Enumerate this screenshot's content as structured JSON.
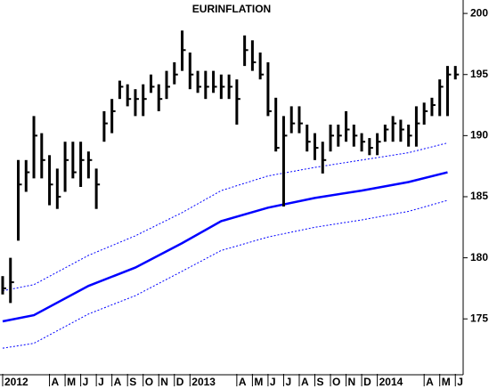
{
  "chart_data": {
    "type": "ohlc",
    "title": "EURINFLATION",
    "xlim": [
      -0.17,
      29.5
    ],
    "ylim": [
      170.5,
      201.1
    ],
    "xticks": [
      {
        "value": 0,
        "label": "2012"
      },
      {
        "value": 3,
        "label": "A"
      },
      {
        "value": 4,
        "label": "M"
      },
      {
        "value": 5,
        "label": "J"
      },
      {
        "value": 6,
        "label": "J"
      },
      {
        "value": 7,
        "label": "A"
      },
      {
        "value": 8,
        "label": "S"
      },
      {
        "value": 9,
        "label": "O"
      },
      {
        "value": 10,
        "label": "N"
      },
      {
        "value": 11,
        "label": "D"
      },
      {
        "value": 12,
        "label": "2013"
      },
      {
        "value": 15,
        "label": "A"
      },
      {
        "value": 16,
        "label": "M"
      },
      {
        "value": 17,
        "label": "J"
      },
      {
        "value": 18,
        "label": "J"
      },
      {
        "value": 19,
        "label": "A"
      },
      {
        "value": 20,
        "label": "S"
      },
      {
        "value": 21,
        "label": "O"
      },
      {
        "value": 22,
        "label": "N"
      },
      {
        "value": 23,
        "label": "D"
      },
      {
        "value": 24,
        "label": "2014"
      },
      {
        "value": 27,
        "label": "A"
      },
      {
        "value": 28,
        "label": "M"
      },
      {
        "value": 29,
        "label": "J"
      }
    ],
    "yticks": [
      175,
      180,
      185,
      190,
      195,
      200
    ],
    "x": [
      0,
      0.5,
      1,
      1.5,
      2,
      2.5,
      3,
      3.5,
      4,
      4.5,
      5,
      5.5,
      6,
      6.5,
      7,
      7.5,
      8,
      8.5,
      9,
      9.5,
      10,
      10.5,
      11,
      11.5,
      12,
      12.5,
      13,
      13.5,
      14,
      14.5,
      15,
      15.5,
      16,
      16.5,
      17,
      17.5,
      18,
      18.5,
      19,
      19.5,
      20,
      20.5,
      21,
      21.5,
      22,
      22.5,
      23,
      23.5,
      24,
      24.5,
      25,
      25.5,
      26,
      26.5,
      27,
      27.5,
      28,
      28.5,
      29
    ],
    "high": [
      178.5,
      180,
      188,
      188,
      191.6,
      190.2,
      188.4,
      187.3,
      189.5,
      189.5,
      189.5,
      188.7,
      187.3,
      192,
      193,
      194.5,
      194.2,
      193.8,
      194.2,
      195,
      194.2,
      195.3,
      196,
      198.6,
      196.8,
      195.3,
      195.3,
      195.3,
      195,
      195,
      194.6,
      198.2,
      197.8,
      196.8,
      196,
      193.1,
      191.6,
      192.4,
      192.4,
      190.9,
      190.2,
      189.5,
      190.9,
      190.9,
      192,
      190.9,
      190.2,
      189.8,
      190.2,
      190.9,
      191.6,
      191.3,
      190.9,
      192.4,
      192.7,
      193.1,
      194.6,
      195.7,
      195.7
    ],
    "low": [
      177,
      176.3,
      181.4,
      185.4,
      186.5,
      186.5,
      184.3,
      184,
      185.4,
      186.5,
      185.8,
      186.5,
      184,
      189.5,
      190.2,
      193,
      192.4,
      191.6,
      191.6,
      193.5,
      192,
      193,
      194.2,
      195.3,
      193.8,
      193.5,
      193,
      193.5,
      193,
      193,
      190.9,
      195.7,
      195.3,
      194.6,
      191.6,
      188.7,
      184.2,
      190.2,
      190.2,
      188.7,
      188,
      186.9,
      188.7,
      189.1,
      189.5,
      189.1,
      188.7,
      188.4,
      188.4,
      189.5,
      189.5,
      189.5,
      189.1,
      189.1,
      190.9,
      191.6,
      191.6,
      191.6,
      194.6
    ],
    "close": [
      177.5,
      178,
      186,
      187,
      190,
      188,
      186,
      185,
      188,
      187,
      188,
      188,
      186,
      191,
      192,
      194,
      193,
      193,
      193,
      194,
      193,
      194,
      195,
      197,
      195,
      194,
      194,
      194,
      194,
      194,
      193,
      197,
      196,
      195,
      192,
      189,
      190,
      191,
      191,
      189.5,
      189,
      188,
      190,
      190,
      190.5,
      190,
      189.5,
      189,
      189.5,
      190.5,
      191,
      190.5,
      190,
      191,
      192,
      192.5,
      194,
      195,
      195
    ],
    "lines_x": [
      0,
      2,
      5.5,
      8.5,
      11.5,
      14,
      17,
      20,
      23,
      26,
      28.5
    ],
    "lines": [
      {
        "color": "#0000ff",
        "style": "solid",
        "values": [
          174.8,
          175.3,
          177.7,
          179.2,
          181.2,
          183,
          184.1,
          184.9,
          185.5,
          186.2,
          187
        ]
      },
      {
        "color": "#0000ff",
        "style": "dotted",
        "values": [
          177.3,
          177.8,
          180.2,
          181.8,
          183.7,
          185.5,
          186.7,
          187.4,
          188,
          188.6,
          189.4
        ]
      },
      {
        "color": "#0000ff",
        "style": "dotted",
        "values": [
          172.6,
          173,
          175.4,
          176.9,
          178.9,
          180.6,
          181.7,
          182.5,
          183.1,
          183.8,
          184.7
        ]
      }
    ],
    "bar_color": "#000000"
  }
}
